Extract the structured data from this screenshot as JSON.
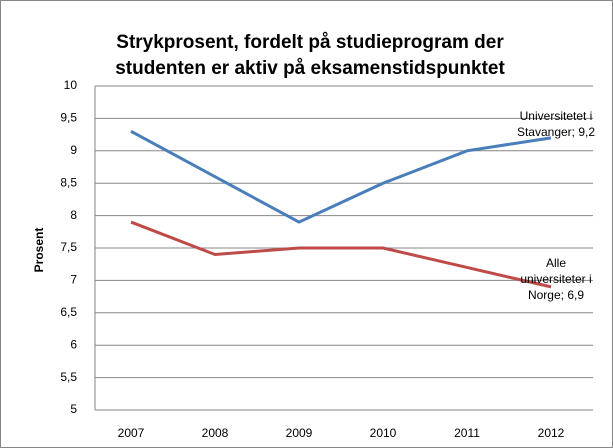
{
  "chart_data": {
    "type": "line",
    "title": "Strykprosent, fordelt på studieprogram der studenten er aktiv på eksamenstidspunktet",
    "y_label": "Prosent",
    "categories": [
      "2007",
      "2008",
      "2009",
      "2010",
      "2011",
      "2012"
    ],
    "series": [
      {
        "color": "#4a7ebb",
        "values": [
          9.3,
          8.6,
          7.9,
          8.5,
          9.0,
          9.2
        ],
        "value_labels": [
          null,
          null,
          null,
          null,
          null,
          "Universitetet i Stavanger; 9,2"
        ]
      },
      {
        "color": "#be4b48",
        "values": [
          7.9,
          7.4,
          7.5,
          7.5,
          7.2,
          6.9
        ],
        "value_labels": [
          null,
          null,
          null,
          null,
          null,
          "Alle universiteter i Norge; 6,9"
        ]
      }
    ],
    "ylim": [
      5,
      10
    ],
    "yticks": [
      5,
      {
        "value": 5.5,
        "label": "5,5"
      },
      6,
      {
        "value": 6.5,
        "label": "6,5"
      },
      7,
      {
        "value": 7.5,
        "label": "7,5"
      },
      8,
      {
        "value": 8.5,
        "label": "8,5"
      },
      9,
      {
        "value": 9.5,
        "label": "9,5"
      },
      10
    ],
    "grid": true
  }
}
